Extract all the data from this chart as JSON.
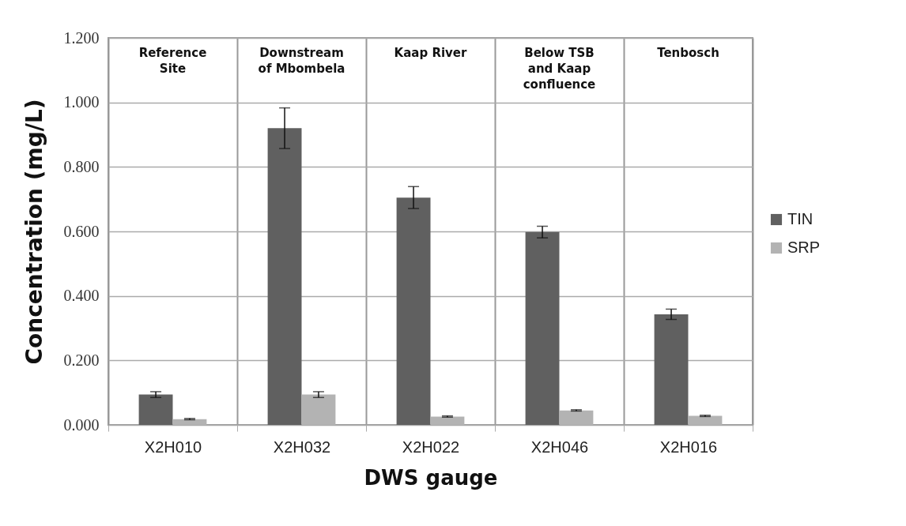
{
  "chart_data": {
    "type": "bar",
    "xlabel": "DWS gauge",
    "ylabel": "Concentration (mg/L)",
    "categories": [
      "X2H010",
      "X2H032",
      "X2H022",
      "X2H046",
      "X2H016"
    ],
    "series": [
      {
        "name": "TIN",
        "color": "#606060",
        "values": [
          0.094,
          0.92,
          0.705,
          0.598,
          0.343
        ],
        "errors": [
          0.009,
          0.063,
          0.034,
          0.018,
          0.016
        ]
      },
      {
        "name": "SRP",
        "color": "#b3b3b3",
        "values": [
          0.018,
          0.094,
          0.026,
          0.045,
          0.028
        ],
        "errors": [
          0.002,
          0.009,
          0.002,
          0.002,
          0.002
        ]
      }
    ],
    "ylim": [
      0,
      1.2
    ],
    "yticks": [
      {
        "value": 0,
        "label": "0.000"
      },
      {
        "value": 0.2,
        "label": "0.200"
      },
      {
        "value": 0.4,
        "label": "0.400"
      },
      {
        "value": 0.6,
        "label": "0.600"
      },
      {
        "value": 0.8,
        "label": "0.800"
      },
      {
        "value": 1,
        "label": "1.000"
      },
      {
        "value": 1.2,
        "label": "1.200"
      }
    ],
    "grid": true,
    "legend": "right",
    "annotations": [
      "Reference Site",
      "Downstream of Mbombela",
      "Kaap River",
      "Below TSB and Kaap confluence",
      "Tenbosch"
    ]
  }
}
